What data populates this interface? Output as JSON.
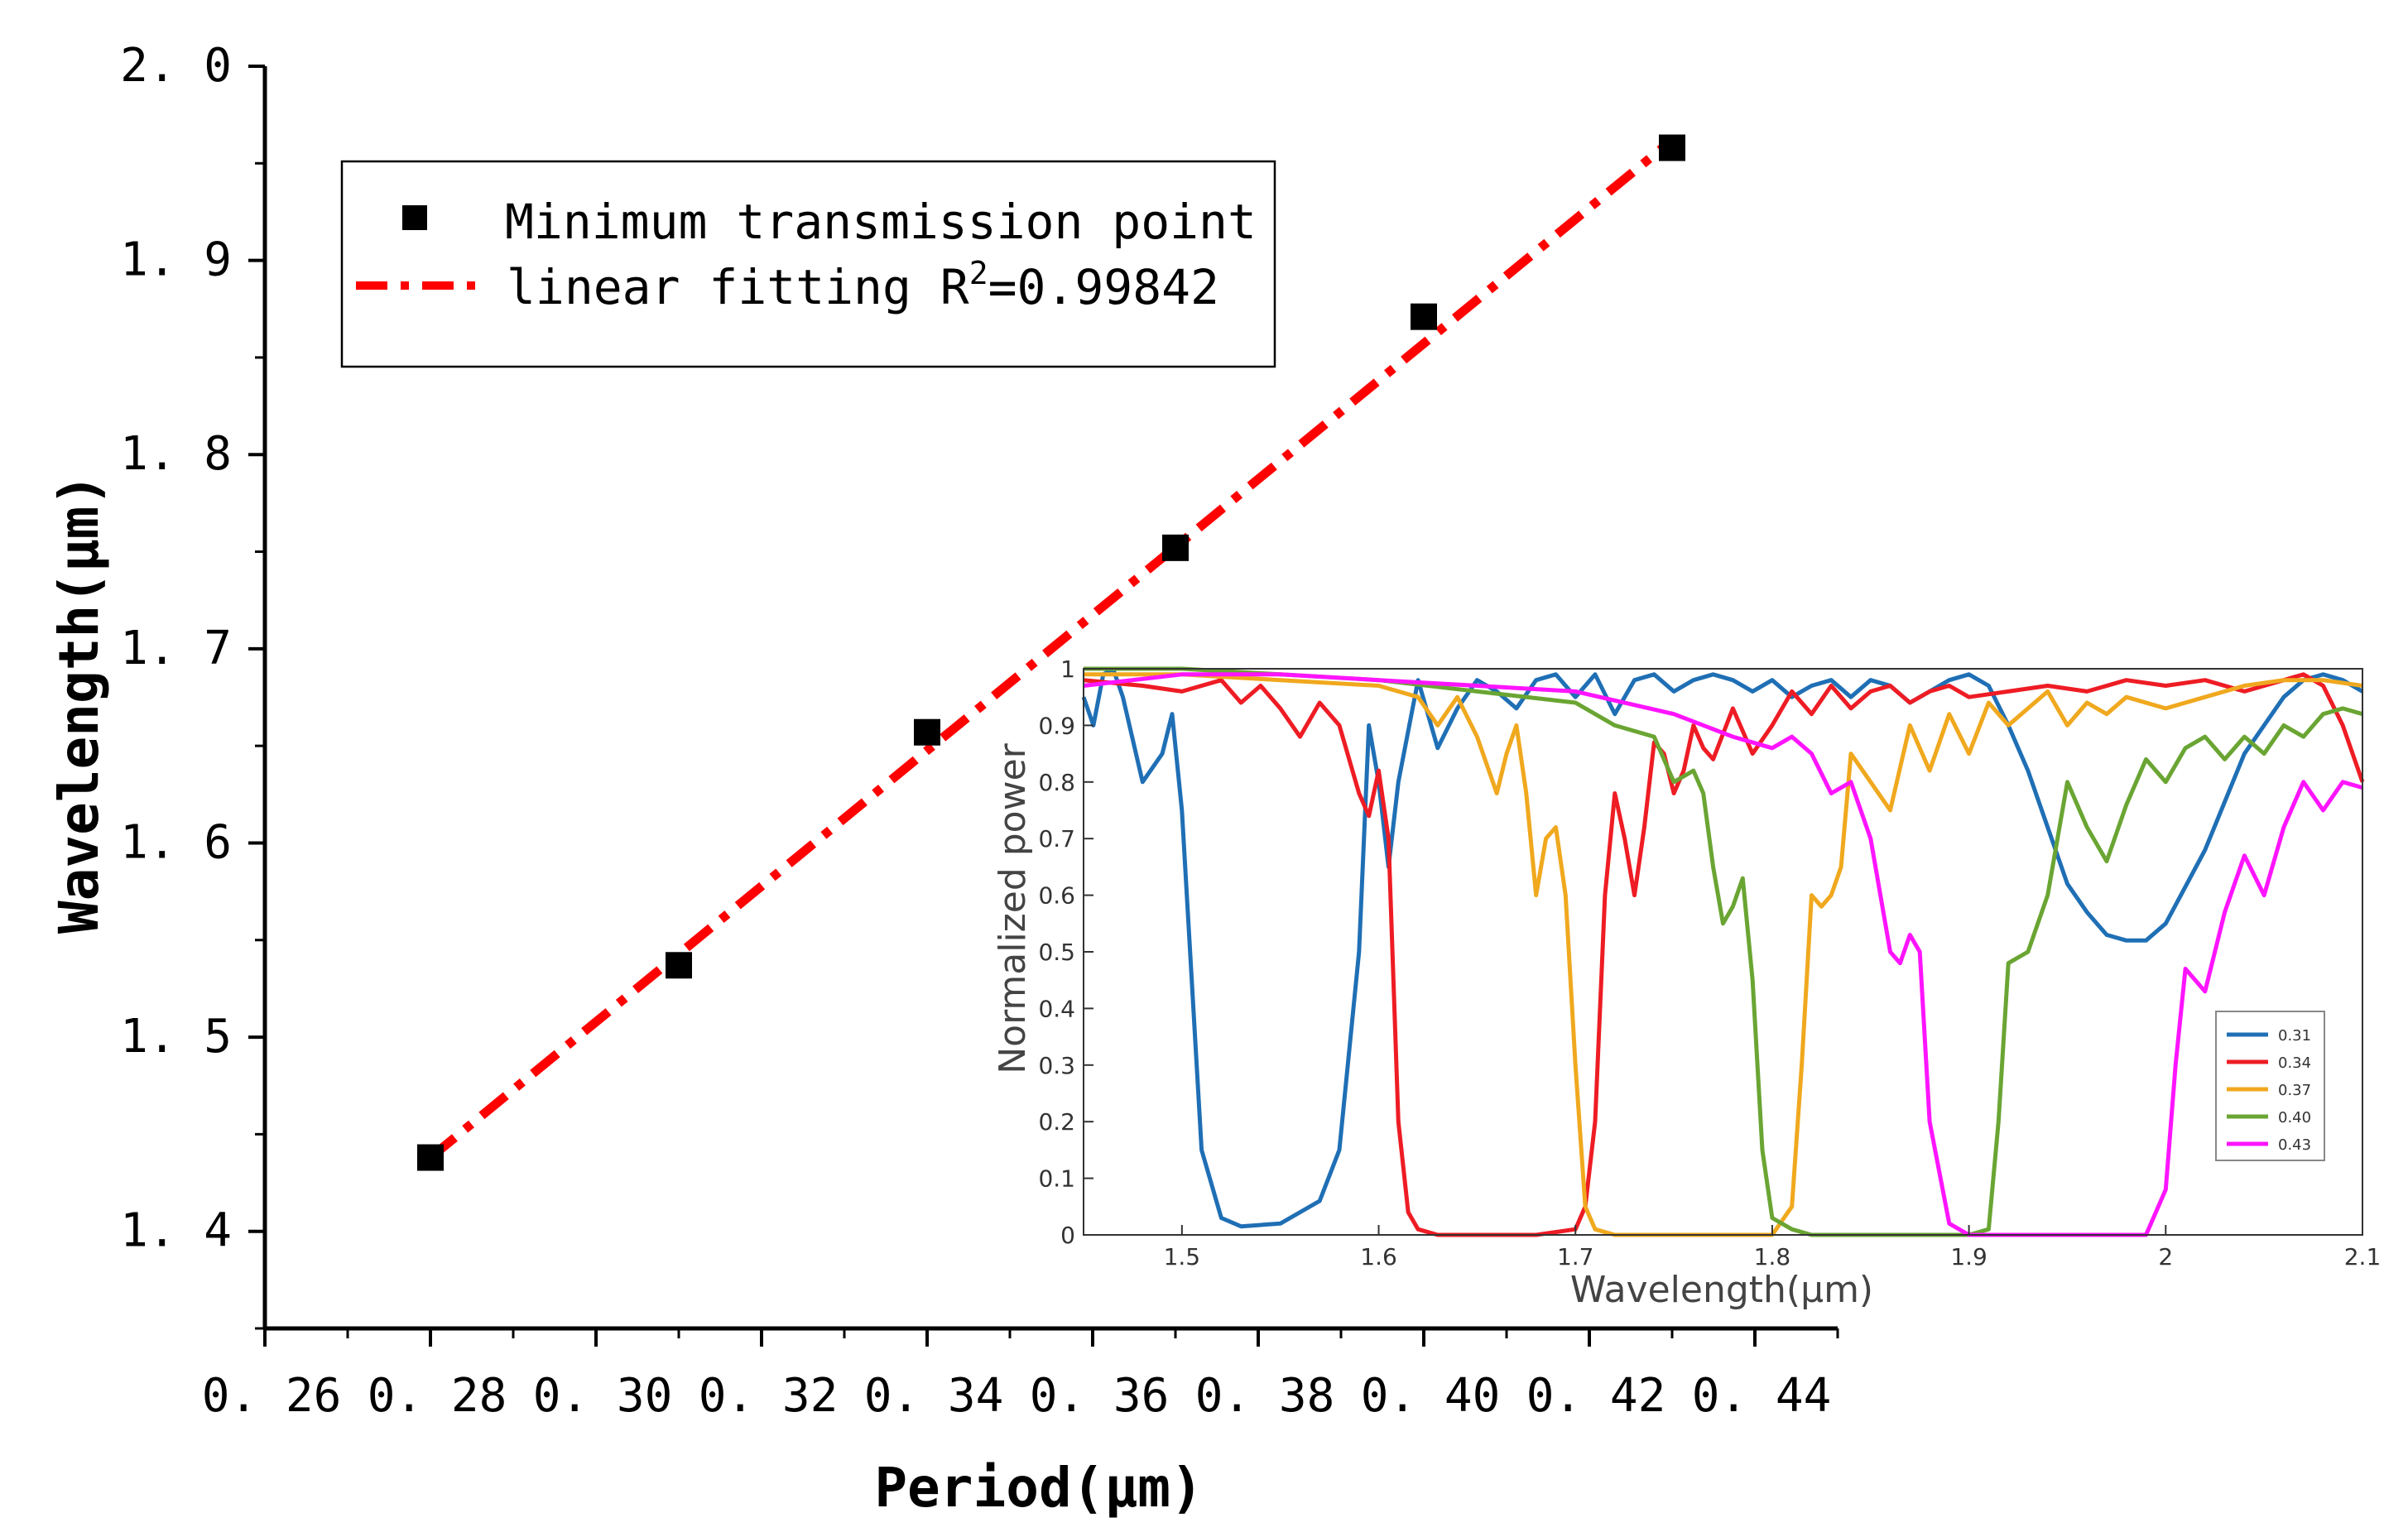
{
  "chart_data": [
    {
      "type": "scatter",
      "xlabel": "Period(μm)",
      "ylabel": "Wavelength(μm)",
      "xlim": [
        0.26,
        0.45
      ],
      "ylim": [
        1.35,
        2.0
      ],
      "x_ticks": [
        "0.26",
        "0.28",
        "0.30",
        "0.32",
        "0.34",
        "0.36",
        "0.38",
        "0.40",
        "0.42",
        "0.44"
      ],
      "y_ticks": [
        "1.4",
        "1.5",
        "1.6",
        "1.7",
        "1.8",
        "1.9",
        "2.0"
      ],
      "series": [
        {
          "name": "Minimum transmission point",
          "style": "square-marker",
          "color": "#000000",
          "x": [
            0.28,
            0.31,
            0.34,
            0.37,
            0.4,
            0.43
          ],
          "y": [
            1.438,
            1.537,
            1.657,
            1.752,
            1.871,
            1.958
          ]
        },
        {
          "name": "linear fitting",
          "style": "dash-dot-line",
          "color": "#ff0000",
          "x": [
            0.28,
            0.43
          ],
          "y": [
            1.438,
            1.962
          ]
        }
      ],
      "legend": {
        "position": "top-left",
        "entries": [
          {
            "label": "Minimum transmission point"
          },
          {
            "label": "linear fitting  R",
            "sup": "2",
            "label_suffix": "=0.99842"
          }
        ]
      }
    },
    {
      "type": "line",
      "inset": true,
      "xlabel": "Wavelength(μm)",
      "ylabel": "Normalized power",
      "xlim": [
        1.45,
        2.1
      ],
      "ylim": [
        0,
        1
      ],
      "x_ticks": [
        "1.5",
        "1.6",
        "1.7",
        "1.8",
        "1.9",
        "2",
        "2.1"
      ],
      "y_ticks": [
        "0",
        "0.1",
        "0.2",
        "0.3",
        "0.4",
        "0.5",
        "0.6",
        "0.7",
        "0.8",
        "0.9",
        "1"
      ],
      "legend": {
        "position": "bottom-right",
        "entries": [
          "0.31",
          "0.34",
          "0.37",
          "0.40",
          "0.43"
        ]
      },
      "series": [
        {
          "name": "0.31",
          "color": "#1f6fb5",
          "x": [
            1.45,
            1.455,
            1.46,
            1.465,
            1.47,
            1.48,
            1.49,
            1.495,
            1.5,
            1.51,
            1.52,
            1.53,
            1.55,
            1.57,
            1.58,
            1.59,
            1.595,
            1.6,
            1.605,
            1.61,
            1.62,
            1.63,
            1.64,
            1.65,
            1.66,
            1.67,
            1.68,
            1.69,
            1.7,
            1.71,
            1.72,
            1.73,
            1.74,
            1.75,
            1.76,
            1.77,
            1.78,
            1.79,
            1.8,
            1.81,
            1.82,
            1.83,
            1.84,
            1.85,
            1.86,
            1.87,
            1.88,
            1.89,
            1.9,
            1.91,
            1.92,
            1.93,
            1.94,
            1.95,
            1.96,
            1.97,
            1.98,
            1.99,
            2.0,
            2.02,
            2.04,
            2.06,
            2.07,
            2.08,
            2.09,
            2.1
          ],
          "y": [
            0.95,
            0.9,
            0.99,
            1.0,
            0.95,
            0.8,
            0.85,
            0.92,
            0.75,
            0.15,
            0.03,
            0.015,
            0.02,
            0.06,
            0.15,
            0.5,
            0.9,
            0.8,
            0.65,
            0.8,
            0.98,
            0.86,
            0.93,
            0.98,
            0.96,
            0.93,
            0.98,
            0.99,
            0.95,
            0.99,
            0.92,
            0.98,
            0.99,
            0.96,
            0.98,
            0.99,
            0.98,
            0.96,
            0.98,
            0.95,
            0.97,
            0.98,
            0.95,
            0.98,
            0.97,
            0.94,
            0.96,
            0.98,
            0.99,
            0.97,
            0.9,
            0.82,
            0.72,
            0.62,
            0.57,
            0.53,
            0.52,
            0.52,
            0.55,
            0.68,
            0.85,
            0.95,
            0.98,
            0.99,
            0.98,
            0.96
          ]
        },
        {
          "name": "0.34",
          "color": "#ee1c24",
          "x": [
            1.45,
            1.48,
            1.5,
            1.52,
            1.53,
            1.54,
            1.55,
            1.56,
            1.57,
            1.58,
            1.59,
            1.595,
            1.6,
            1.605,
            1.61,
            1.615,
            1.62,
            1.63,
            1.65,
            1.68,
            1.7,
            1.705,
            1.71,
            1.715,
            1.72,
            1.725,
            1.73,
            1.735,
            1.74,
            1.745,
            1.75,
            1.755,
            1.76,
            1.765,
            1.77,
            1.78,
            1.79,
            1.8,
            1.81,
            1.82,
            1.83,
            1.84,
            1.85,
            1.86,
            1.87,
            1.88,
            1.89,
            1.9,
            1.92,
            1.94,
            1.96,
            1.98,
            2.0,
            2.02,
            2.04,
            2.06,
            2.07,
            2.08,
            2.09,
            2.1
          ],
          "y": [
            0.98,
            0.97,
            0.96,
            0.98,
            0.94,
            0.97,
            0.93,
            0.88,
            0.94,
            0.9,
            0.78,
            0.74,
            0.82,
            0.7,
            0.2,
            0.04,
            0.01,
            0.0,
            0.0,
            0.0,
            0.01,
            0.05,
            0.2,
            0.6,
            0.78,
            0.7,
            0.6,
            0.72,
            0.87,
            0.85,
            0.78,
            0.82,
            0.9,
            0.86,
            0.84,
            0.93,
            0.85,
            0.9,
            0.96,
            0.92,
            0.97,
            0.93,
            0.96,
            0.97,
            0.94,
            0.96,
            0.97,
            0.95,
            0.96,
            0.97,
            0.96,
            0.98,
            0.97,
            0.98,
            0.96,
            0.98,
            0.99,
            0.97,
            0.9,
            0.8
          ]
        },
        {
          "name": "0.37",
          "color": "#f0a81e",
          "x": [
            1.45,
            1.5,
            1.55,
            1.6,
            1.62,
            1.63,
            1.64,
            1.65,
            1.66,
            1.665,
            1.67,
            1.675,
            1.68,
            1.685,
            1.69,
            1.695,
            1.7,
            1.705,
            1.71,
            1.72,
            1.73,
            1.75,
            1.8,
            1.81,
            1.815,
            1.82,
            1.825,
            1.83,
            1.835,
            1.84,
            1.85,
            1.86,
            1.87,
            1.88,
            1.89,
            1.9,
            1.91,
            1.92,
            1.93,
            1.94,
            1.95,
            1.96,
            1.97,
            1.98,
            2.0,
            2.02,
            2.04,
            2.06,
            2.08,
            2.1
          ],
          "y": [
            0.99,
            0.99,
            0.98,
            0.97,
            0.95,
            0.9,
            0.95,
            0.88,
            0.78,
            0.85,
            0.9,
            0.78,
            0.6,
            0.7,
            0.72,
            0.6,
            0.3,
            0.05,
            0.01,
            0.0,
            0.0,
            0.0,
            0.0,
            0.05,
            0.3,
            0.6,
            0.58,
            0.6,
            0.65,
            0.85,
            0.8,
            0.75,
            0.9,
            0.82,
            0.92,
            0.85,
            0.94,
            0.9,
            0.93,
            0.96,
            0.9,
            0.94,
            0.92,
            0.95,
            0.93,
            0.95,
            0.97,
            0.98,
            0.98,
            0.97
          ]
        },
        {
          "name": "0.40",
          "color": "#6aa533",
          "x": [
            1.45,
            1.5,
            1.55,
            1.6,
            1.65,
            1.7,
            1.72,
            1.74,
            1.75,
            1.76,
            1.765,
            1.77,
            1.775,
            1.78,
            1.785,
            1.79,
            1.795,
            1.8,
            1.81,
            1.82,
            1.85,
            1.9,
            1.91,
            1.915,
            1.92,
            1.93,
            1.94,
            1.95,
            1.96,
            1.97,
            1.98,
            1.99,
            2.0,
            2.01,
            2.02,
            2.03,
            2.04,
            2.05,
            2.06,
            2.07,
            2.08,
            2.09,
            2.1
          ],
          "y": [
            1.0,
            1.0,
            0.99,
            0.98,
            0.96,
            0.94,
            0.9,
            0.88,
            0.8,
            0.82,
            0.78,
            0.65,
            0.55,
            0.58,
            0.63,
            0.45,
            0.15,
            0.03,
            0.01,
            0.0,
            0.0,
            0.0,
            0.01,
            0.2,
            0.48,
            0.5,
            0.6,
            0.8,
            0.72,
            0.66,
            0.76,
            0.84,
            0.8,
            0.86,
            0.88,
            0.84,
            0.88,
            0.85,
            0.9,
            0.88,
            0.92,
            0.93,
            0.92
          ]
        },
        {
          "name": "0.43",
          "color": "#ff14ff",
          "x": [
            1.45,
            1.5,
            1.55,
            1.6,
            1.65,
            1.7,
            1.75,
            1.78,
            1.8,
            1.81,
            1.82,
            1.83,
            1.84,
            1.85,
            1.86,
            1.865,
            1.87,
            1.875,
            1.88,
            1.89,
            1.9,
            1.95,
            1.99,
            2.0,
            2.005,
            2.01,
            2.02,
            2.025,
            2.03,
            2.04,
            2.05,
            2.06,
            2.07,
            2.08,
            2.09,
            2.1
          ],
          "y": [
            0.97,
            0.99,
            0.99,
            0.98,
            0.97,
            0.96,
            0.92,
            0.88,
            0.86,
            0.88,
            0.85,
            0.78,
            0.8,
            0.7,
            0.5,
            0.48,
            0.53,
            0.5,
            0.2,
            0.02,
            0.0,
            0.0,
            0.0,
            0.08,
            0.3,
            0.47,
            0.43,
            0.5,
            0.57,
            0.67,
            0.6,
            0.72,
            0.8,
            0.75,
            0.8,
            0.79
          ]
        }
      ]
    }
  ]
}
